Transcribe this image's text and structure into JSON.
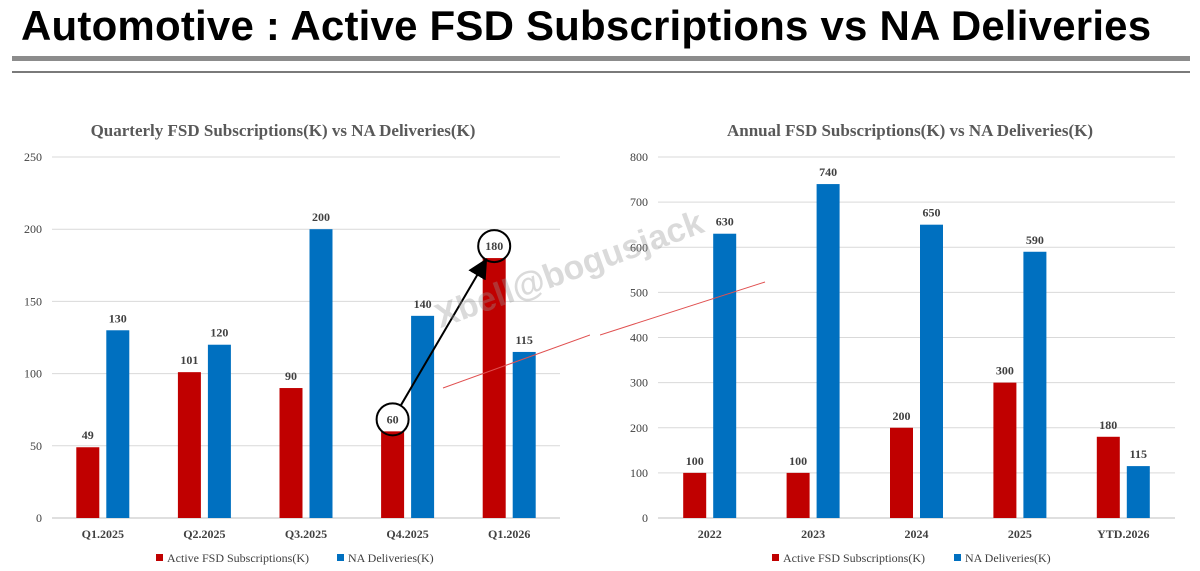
{
  "page": {
    "title": "Automotive : Active FSD Subscriptions vs NA Deliveries"
  },
  "watermark": "Xbell@bogusjack",
  "colors": {
    "subscriptions": "#c00000",
    "deliveries": "#0070c0",
    "gridline": "#d9d9d9",
    "arrow": "#000000",
    "annotation_line": "#e05050"
  },
  "chart_data": [
    {
      "type": "bar",
      "title": "Quarterly  FSD Subscriptions(K) vs NA Deliveries(K)",
      "categories": [
        "Q1.2025",
        "Q2.2025",
        "Q3.2025",
        "Q4.2025",
        "Q1.2026"
      ],
      "series": [
        {
          "name": "Active FSD Subscriptions(K)",
          "values": [
            49,
            101,
            90,
            60,
            180
          ]
        },
        {
          "name": "NA Deliveries(K)",
          "values": [
            130,
            120,
            200,
            140,
            115
          ]
        }
      ],
      "ylim": [
        0,
        250
      ],
      "yticks": [
        0,
        50,
        100,
        150,
        200,
        250
      ],
      "grid": true,
      "legend": "bottom",
      "annotations": {
        "circled": [
          {
            "category": "Q4.2025",
            "value": 60
          },
          {
            "category": "Q1.2026",
            "value": 180
          }
        ],
        "arrow": {
          "from": "Q4.2025",
          "to": "Q1.2026"
        }
      }
    },
    {
      "type": "bar",
      "title": "Annual  FSD Subscriptions(K) vs NA Deliveries(K)",
      "categories": [
        "2022",
        "2023",
        "2024",
        "2025",
        "YTD.2026"
      ],
      "series": [
        {
          "name": "Active FSD Subscriptions(K)",
          "values": [
            100,
            100,
            200,
            300,
            180
          ]
        },
        {
          "name": "NA Deliveries(K)",
          "values": [
            630,
            740,
            650,
            590,
            115
          ]
        }
      ],
      "ylim": [
        0,
        800
      ],
      "yticks": [
        0,
        100,
        200,
        300,
        400,
        500,
        600,
        700,
        800
      ],
      "grid": true,
      "legend": "bottom"
    }
  ]
}
